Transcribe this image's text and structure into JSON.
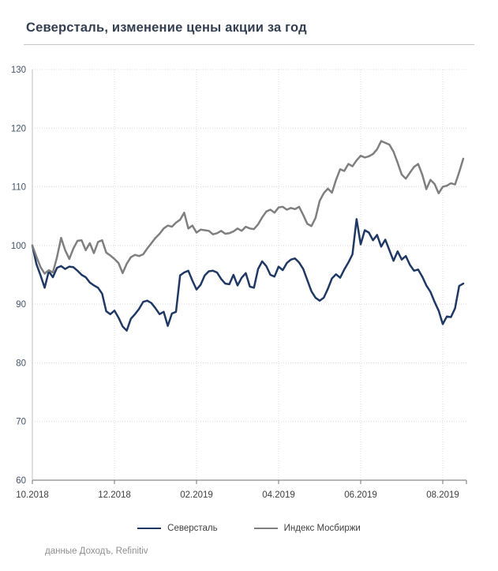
{
  "header": {
    "title": "Северсталь, изменение цены акции за год"
  },
  "footer": {
    "source": "данные Доходъ, Refinitiv"
  },
  "colors": {
    "title": "#333F50",
    "series_severstal": "#1f3864",
    "series_moex": "#7f7f7f",
    "gridline": "#d9d9d9",
    "axis_line": "#8c8c8c",
    "plot_left_border": "#bfbfbf",
    "y_tick_label": "#44546a",
    "x_tick_label": "#3f3f3f",
    "legend_text": "#3f3f3f",
    "source_text": "#8f8f8f"
  },
  "chart_data": {
    "type": "line",
    "title": "Северсталь, изменение цены акции за год",
    "xlabel": "",
    "ylabel": "",
    "ylim": [
      60,
      130
    ],
    "y_ticks": [
      60,
      70,
      80,
      90,
      100,
      110,
      120,
      130
    ],
    "x_tick_labels": [
      "10.2018",
      "12.2018",
      "02.2019",
      "04.2019",
      "06.2019",
      "08.2019"
    ],
    "x_tick_months": [
      0,
      2,
      4,
      6,
      8,
      10
    ],
    "x_range_months": [
      0,
      10.5
    ],
    "x_step_months": 0.1,
    "grid": "dotted",
    "legend_position": "bottom",
    "baseline_value": 100,
    "series": [
      {
        "name": "Северсталь",
        "color": "#1f3864",
        "values": [
          100.0,
          96.8,
          94.9,
          92.8,
          95.6,
          94.6,
          96.2,
          96.5,
          96.0,
          96.4,
          96.3,
          95.7,
          95.0,
          94.6,
          93.7,
          93.2,
          92.8,
          91.8,
          88.8,
          88.3,
          88.9,
          87.7,
          86.2,
          85.5,
          87.5,
          88.3,
          89.2,
          90.4,
          90.6,
          90.2,
          89.3,
          88.3,
          88.7,
          86.3,
          88.4,
          88.7,
          94.9,
          95.4,
          95.7,
          94.0,
          92.5,
          93.3,
          94.9,
          95.6,
          95.7,
          95.4,
          94.3,
          93.5,
          93.4,
          95.0,
          93.2,
          94.5,
          95.3,
          93.0,
          92.8,
          96.0,
          97.3,
          96.5,
          95.0,
          94.7,
          96.4,
          95.8,
          97.0,
          97.6,
          97.8,
          97.1,
          96.0,
          94.1,
          92.2,
          91.1,
          90.6,
          91.1,
          92.6,
          94.4,
          95.1,
          94.5,
          95.9,
          97.1,
          98.5,
          104.5,
          100.2,
          102.6,
          102.2,
          100.9,
          101.8,
          99.8,
          101.0,
          99.2,
          97.4,
          99.0,
          97.6,
          98.2,
          96.7,
          95.7,
          95.9,
          94.7,
          93.2,
          92.1,
          90.4,
          88.9,
          86.6,
          87.9,
          87.8,
          89.3,
          93.1,
          93.5
        ]
      },
      {
        "name": "Индекс Мосбиржи",
        "color": "#7f7f7f",
        "values": [
          100.0,
          98.1,
          96.3,
          95.2,
          95.8,
          95.4,
          98.0,
          101.3,
          99.2,
          97.7,
          99.5,
          100.8,
          100.9,
          99.2,
          100.4,
          98.7,
          100.6,
          100.9,
          98.8,
          98.3,
          97.7,
          97.0,
          95.3,
          96.9,
          98.0,
          98.4,
          98.2,
          98.5,
          99.5,
          100.4,
          101.3,
          102.0,
          102.9,
          103.4,
          103.2,
          103.9,
          104.4,
          105.6,
          102.9,
          103.4,
          102.2,
          102.7,
          102.6,
          102.5,
          101.9,
          102.1,
          102.5,
          102.0,
          102.1,
          102.4,
          102.9,
          102.5,
          103.2,
          102.9,
          102.8,
          103.6,
          104.8,
          105.8,
          106.1,
          105.6,
          106.5,
          106.6,
          106.1,
          106.4,
          106.2,
          106.6,
          105.2,
          103.7,
          103.3,
          104.7,
          107.6,
          108.9,
          109.7,
          109.0,
          111.2,
          113.0,
          112.7,
          113.9,
          113.5,
          114.5,
          115.3,
          115.0,
          115.2,
          115.6,
          116.4,
          117.8,
          117.5,
          117.2,
          116.0,
          114.1,
          112.1,
          111.4,
          112.4,
          113.4,
          113.9,
          112.1,
          109.6,
          111.2,
          110.5,
          108.9,
          110.0,
          110.2,
          110.6,
          110.4,
          112.5,
          114.8
        ]
      }
    ]
  }
}
